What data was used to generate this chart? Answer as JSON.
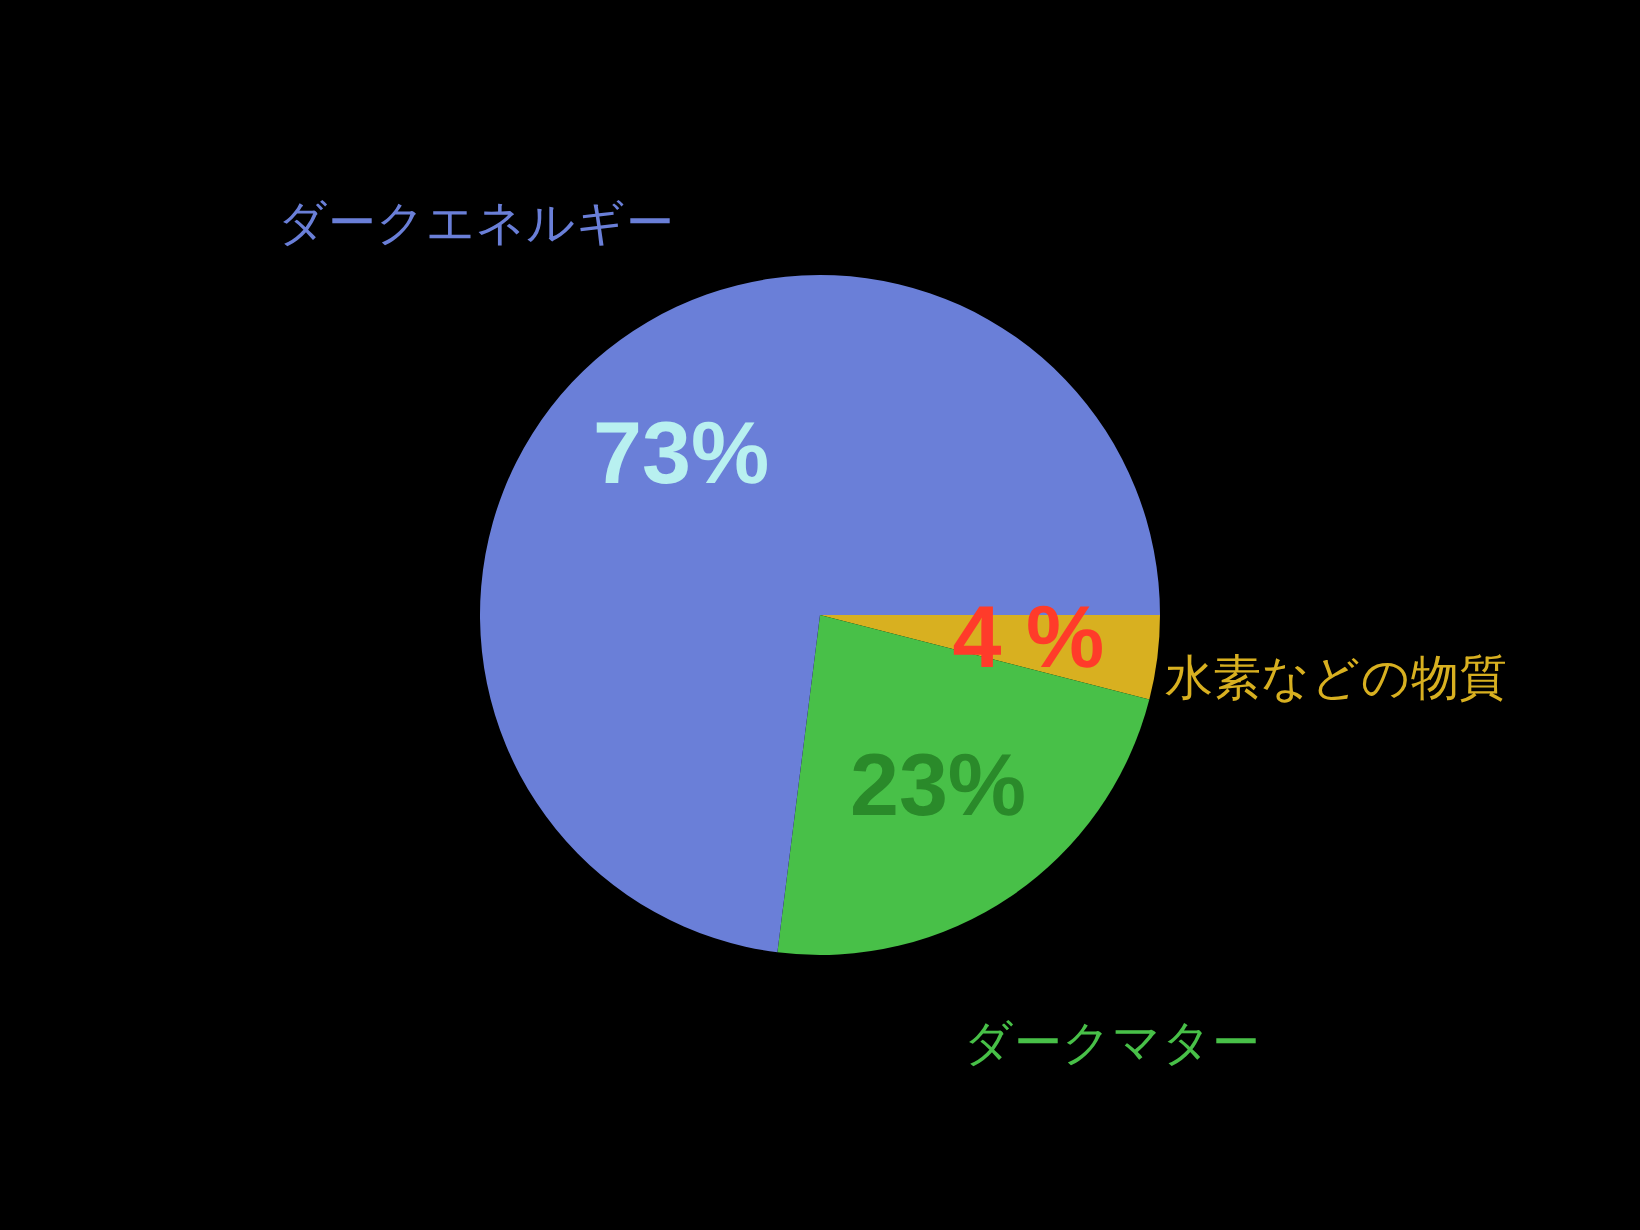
{
  "chart_data": {
    "type": "pie",
    "categories": [
      "水素などの物質",
      "ダークマター",
      "ダークエネルギー"
    ],
    "values": [
      4,
      23,
      73
    ],
    "colors": [
      "#d8b020",
      "#48c048",
      "#6a7fd8"
    ],
    "value_labels": [
      "4 %",
      "23%",
      "73%"
    ]
  }
}
